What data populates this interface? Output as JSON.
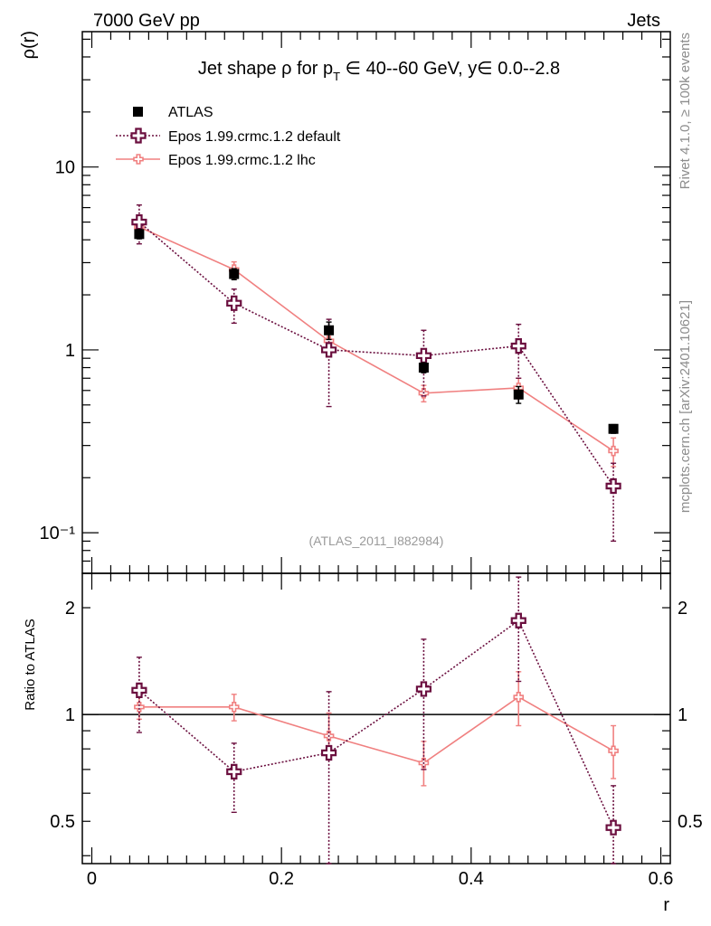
{
  "header": {
    "left": "7000 GeV pp",
    "right": "Jets"
  },
  "side": {
    "rivet": "Rivet 4.1.0, ≥ 100k events",
    "mcplots": "mcplots.cern.ch [arXiv:2401.10621]"
  },
  "colors": {
    "atlas": "#000000",
    "default": "#6b0f3f",
    "lhc": "#f08080"
  },
  "chart_data": [
    {
      "type": "scatter",
      "title": "Jet shape ρ for p_T ∈ 40--60 GeV, y∈ 0.0--2.8",
      "title_parts": {
        "pre": "Jet shape ρ for p",
        "sub": "T",
        "post": " ∈ 40--60 GeV, y∈ 0.0--2.8"
      },
      "ylabel": "ρ(r)",
      "xlabel": "",
      "yscale": "log",
      "ylim": [
        0.06,
        55
      ],
      "xlim": [
        -0.01,
        0.61
      ],
      "yticks": [
        {
          "value": 10,
          "label": "10"
        },
        {
          "value": 1,
          "label": "1"
        },
        {
          "value": 0.1,
          "label": "10⁻¹"
        }
      ],
      "annotation": "(ATLAS_2011_I882984)",
      "legend": [
        {
          "key": "atlas",
          "label": "ATLAS"
        },
        {
          "key": "default",
          "label": "Epos 1.99.crmc.1.2 default"
        },
        {
          "key": "lhc",
          "label": "Epos 1.99.crmc.1.2 lhc"
        }
      ],
      "series": [
        {
          "key": "atlas",
          "name": "ATLAS",
          "x": [
            0.05,
            0.15,
            0.25,
            0.35,
            0.45,
            0.55
          ],
          "values": [
            4.3,
            2.6,
            1.28,
            0.8,
            0.57,
            0.37
          ],
          "err_up": [
            0.25,
            0.18,
            0.14,
            0.05,
            0.06,
            0.02
          ],
          "err_down": [
            0.25,
            0.18,
            0.14,
            0.05,
            0.06,
            0.02
          ]
        },
        {
          "key": "default",
          "name": "Epos 1.99.crmc.1.2 default",
          "x": [
            0.05,
            0.15,
            0.25,
            0.35,
            0.45,
            0.55
          ],
          "values": [
            5.0,
            1.8,
            1.0,
            0.93,
            1.05,
            0.18
          ],
          "err_up": [
            1.2,
            0.35,
            0.47,
            0.35,
            0.33,
            0.06
          ],
          "err_down": [
            1.2,
            0.4,
            0.51,
            0.37,
            0.35,
            0.09
          ]
        },
        {
          "key": "lhc",
          "name": "Epos 1.99.crmc.1.2 lhc",
          "x": [
            0.05,
            0.15,
            0.25,
            0.35,
            0.45,
            0.55
          ],
          "values": [
            4.7,
            2.75,
            1.12,
            0.58,
            0.62,
            0.28
          ],
          "err_up": [
            0.3,
            0.28,
            0.13,
            0.06,
            0.08,
            0.05
          ],
          "err_down": [
            0.3,
            0.28,
            0.13,
            0.06,
            0.08,
            0.05
          ]
        }
      ]
    },
    {
      "type": "scatter",
      "title": "",
      "ylabel": "Ratio to ATLAS",
      "xlabel": "r",
      "yscale": "log",
      "ylim": [
        0.38,
        2.5
      ],
      "xlim": [
        -0.01,
        0.61
      ],
      "yticks": [
        {
          "value": 2,
          "label": "2"
        },
        {
          "value": 1,
          "label": "1"
        },
        {
          "value": 0.5,
          "label": "0.5"
        }
      ],
      "xticks": [
        {
          "value": 0,
          "label": "0"
        },
        {
          "value": 0.2,
          "label": "0.2"
        },
        {
          "value": 0.4,
          "label": "0.4"
        },
        {
          "value": 0.6,
          "label": "0.6"
        }
      ],
      "reference": 1,
      "series": [
        {
          "key": "default",
          "name": "Epos 1.99.crmc.1.2 default",
          "x": [
            0.05,
            0.15,
            0.25,
            0.35,
            0.45,
            0.55
          ],
          "values": [
            1.17,
            0.69,
            0.78,
            1.18,
            1.84,
            0.48
          ],
          "err_up": [
            0.28,
            0.14,
            0.38,
            0.45,
            0.6,
            0.15
          ],
          "err_down": [
            0.28,
            0.16,
            0.42,
            0.48,
            0.6,
            0.2
          ]
        },
        {
          "key": "lhc",
          "name": "Epos 1.99.crmc.1.2 lhc",
          "x": [
            0.05,
            0.15,
            0.25,
            0.35,
            0.45,
            0.55
          ],
          "values": [
            1.05,
            1.05,
            0.87,
            0.73,
            1.12,
            0.79
          ],
          "err_up": [
            0.08,
            0.09,
            0.14,
            0.11,
            0.2,
            0.14
          ],
          "err_down": [
            0.08,
            0.09,
            0.12,
            0.1,
            0.19,
            0.13
          ]
        }
      ]
    }
  ]
}
